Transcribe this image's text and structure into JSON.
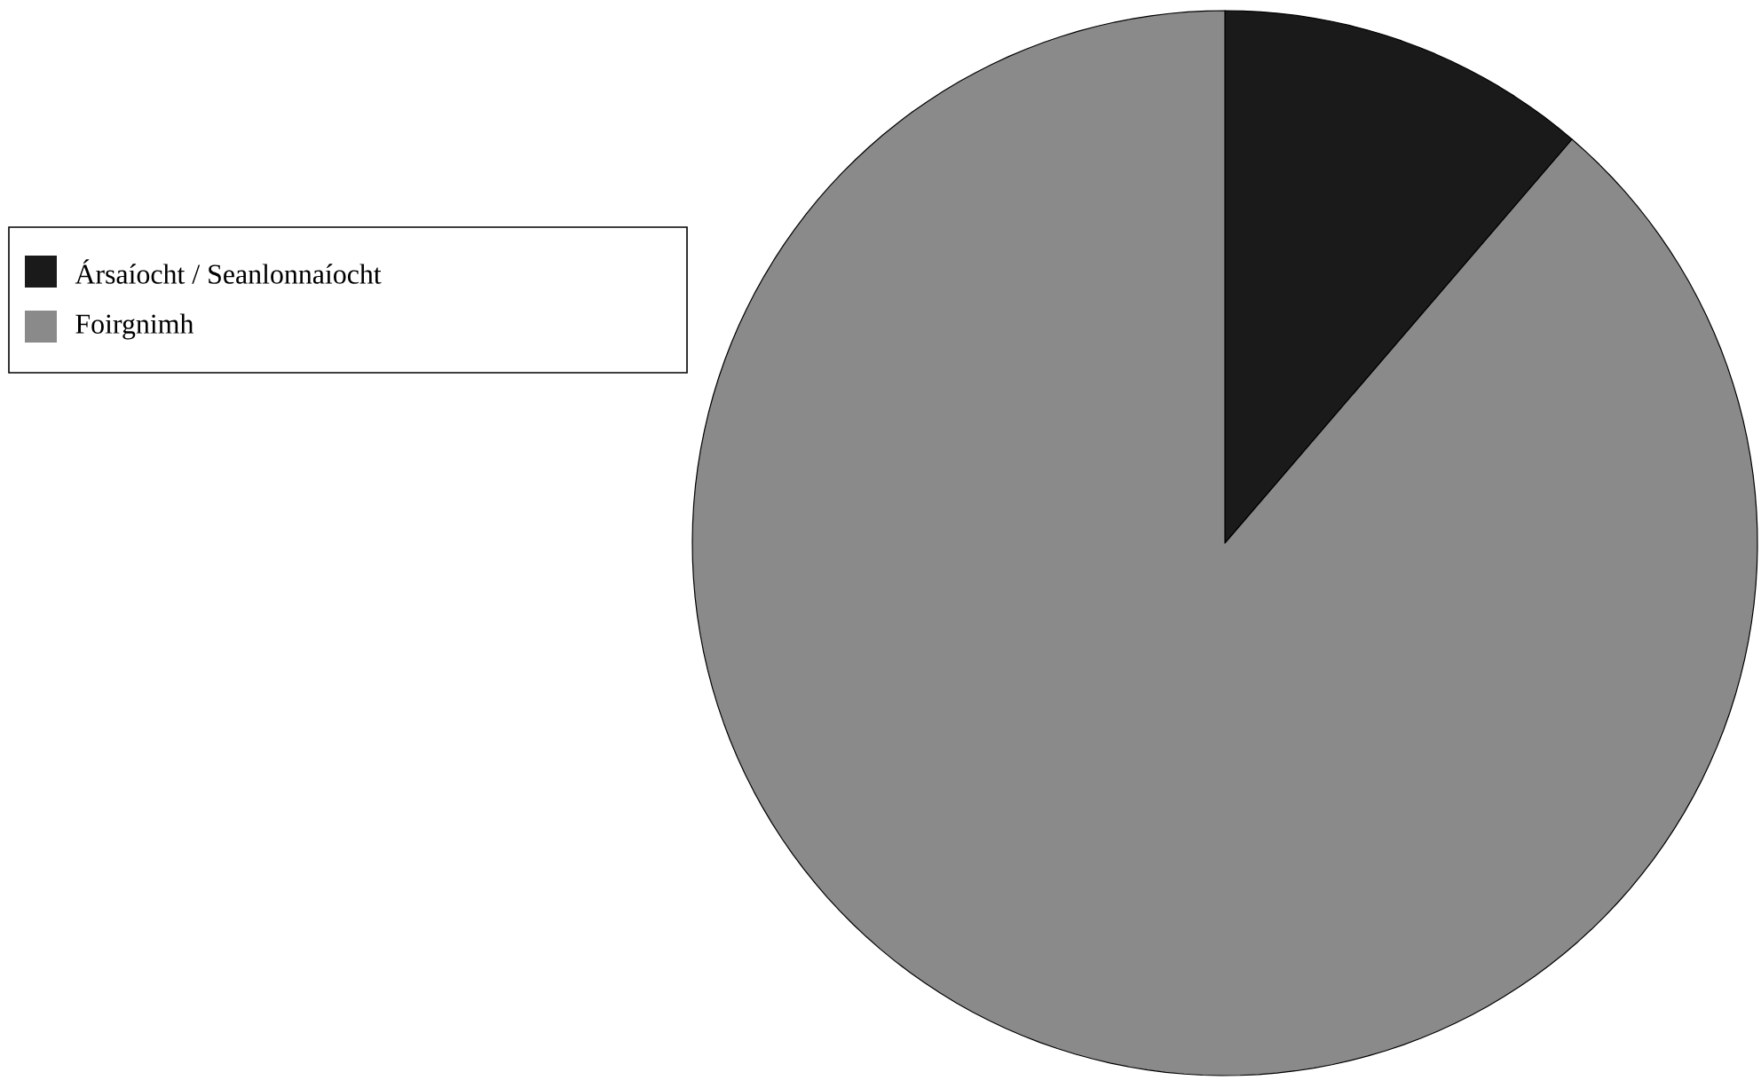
{
  "chart_data": {
    "type": "pie",
    "categories": [
      "Ársaíocht / Seanlonnaíocht",
      "Foirgnimh"
    ],
    "values": [
      11.3,
      88.7
    ],
    "colors": [
      "#1a1a1a",
      "#8a8a8a"
    ],
    "legend": "left"
  }
}
